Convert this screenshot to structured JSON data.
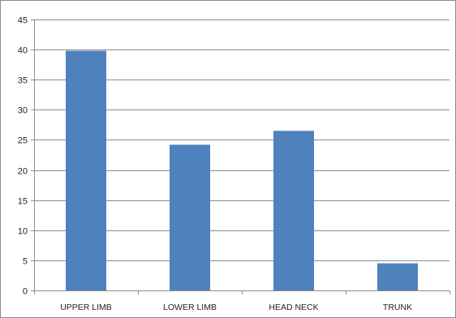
{
  "chart_data": {
    "type": "bar",
    "title": "",
    "xlabel": "",
    "ylabel": "",
    "categories": [
      "UPPER LIMB",
      "LOWER LIMB",
      "HEAD NECK",
      "TRUNK"
    ],
    "values": [
      39.8,
      24.2,
      26.5,
      4.5
    ],
    "ylim": [
      0,
      45
    ],
    "yticks": [
      0,
      5,
      10,
      15,
      20,
      25,
      30,
      35,
      40,
      45
    ],
    "grid": true,
    "legend": "none",
    "colors": {
      "bar": "#4f81bd",
      "grid": "#8c8c8c",
      "axis": "#8c8c8c",
      "text": "#222222"
    }
  }
}
